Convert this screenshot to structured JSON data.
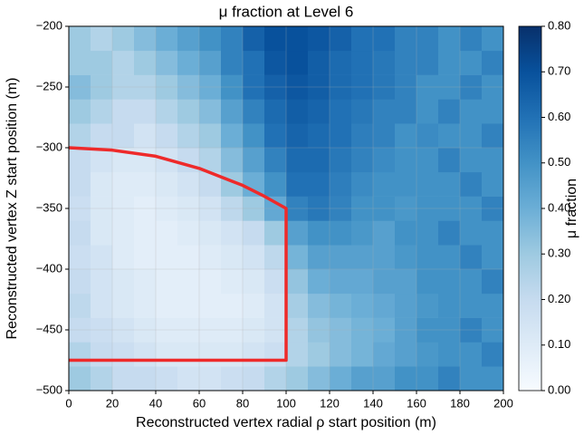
{
  "chart_data": {
    "type": "heatmap",
    "title": "μ fraction at Level 6",
    "xlabel": "Reconstructed vertex radial ρ start position (m)",
    "ylabel": "Reconstructed vertex Z start position (m)",
    "colorbar_label": "μ fraction",
    "colormap": "Blues",
    "grid": true,
    "xlim": [
      0,
      200
    ],
    "ylim": [
      -500,
      -200
    ],
    "clim": [
      0,
      0.8
    ],
    "xticks": [
      0,
      20,
      40,
      60,
      80,
      100,
      120,
      140,
      160,
      180,
      200
    ],
    "yticks": [
      {
        "value": -500,
        "label": "−500"
      },
      {
        "value": -450,
        "label": "−450"
      },
      {
        "value": -400,
        "label": "−400"
      },
      {
        "value": -350,
        "label": "−350"
      },
      {
        "value": -300,
        "label": "−300"
      },
      {
        "value": -250,
        "label": "−250"
      },
      {
        "value": -200,
        "label": "−200"
      }
    ],
    "cticks": [
      {
        "value": 0,
        "label": "0.00"
      },
      {
        "value": 0.1,
        "label": "0.10"
      },
      {
        "value": 0.2,
        "label": "0.20"
      },
      {
        "value": 0.3,
        "label": "0.30"
      },
      {
        "value": 0.4,
        "label": "0.40"
      },
      {
        "value": 0.5,
        "label": "0.50"
      },
      {
        "value": 0.6,
        "label": "0.60"
      },
      {
        "value": 0.7,
        "label": "0.70"
      },
      {
        "value": 0.8,
        "label": "0.80"
      }
    ],
    "x_bins": [
      0,
      10,
      20,
      30,
      40,
      50,
      60,
      70,
      80,
      90,
      100,
      110,
      120,
      130,
      140,
      150,
      160,
      170,
      180,
      190,
      200
    ],
    "y_bins": [
      -500,
      -480,
      -460,
      -440,
      -420,
      -400,
      -380,
      -360,
      -340,
      -320,
      -300,
      -280,
      -260,
      -240,
      -220,
      -200
    ],
    "z": [
      [
        0.3,
        0.25,
        0.2,
        0.2,
        0.18,
        0.15,
        0.15,
        0.18,
        0.2,
        0.25,
        0.3,
        0.35,
        0.4,
        0.45,
        0.45,
        0.5,
        0.5,
        0.55,
        0.5,
        0.5
      ],
      [
        0.25,
        0.2,
        0.18,
        0.15,
        0.12,
        0.12,
        0.12,
        0.12,
        0.15,
        0.18,
        0.25,
        0.3,
        0.35,
        0.38,
        0.42,
        0.45,
        0.48,
        0.5,
        0.5,
        0.55
      ],
      [
        0.2,
        0.18,
        0.15,
        0.12,
        0.1,
        0.1,
        0.1,
        0.1,
        0.12,
        0.15,
        0.25,
        0.32,
        0.35,
        0.38,
        0.4,
        0.45,
        0.5,
        0.5,
        0.55,
        0.5
      ],
      [
        0.22,
        0.15,
        0.12,
        0.1,
        0.08,
        0.08,
        0.08,
        0.08,
        0.1,
        0.15,
        0.28,
        0.35,
        0.38,
        0.4,
        0.42,
        0.45,
        0.48,
        0.5,
        0.5,
        0.5
      ],
      [
        0.2,
        0.15,
        0.12,
        0.1,
        0.08,
        0.08,
        0.08,
        0.1,
        0.12,
        0.18,
        0.32,
        0.4,
        0.42,
        0.42,
        0.45,
        0.45,
        0.5,
        0.5,
        0.5,
        0.55
      ],
      [
        0.18,
        0.15,
        0.1,
        0.08,
        0.08,
        0.08,
        0.1,
        0.12,
        0.15,
        0.22,
        0.38,
        0.45,
        0.45,
        0.45,
        0.45,
        0.48,
        0.5,
        0.5,
        0.55,
        0.5
      ],
      [
        0.2,
        0.12,
        0.1,
        0.08,
        0.08,
        0.1,
        0.12,
        0.15,
        0.2,
        0.3,
        0.45,
        0.5,
        0.5,
        0.48,
        0.45,
        0.5,
        0.5,
        0.55,
        0.5,
        0.5
      ],
      [
        0.18,
        0.12,
        0.1,
        0.08,
        0.1,
        0.12,
        0.15,
        0.22,
        0.3,
        0.42,
        0.55,
        0.58,
        0.55,
        0.5,
        0.5,
        0.48,
        0.5,
        0.5,
        0.5,
        0.55
      ],
      [
        0.2,
        0.12,
        0.1,
        0.1,
        0.12,
        0.15,
        0.2,
        0.3,
        0.4,
        0.5,
        0.6,
        0.6,
        0.56,
        0.52,
        0.5,
        0.5,
        0.5,
        0.5,
        0.55,
        0.5
      ],
      [
        0.2,
        0.15,
        0.12,
        0.12,
        0.15,
        0.2,
        0.25,
        0.35,
        0.45,
        0.55,
        0.62,
        0.62,
        0.58,
        0.55,
        0.52,
        0.5,
        0.5,
        0.55,
        0.5,
        0.5
      ],
      [
        0.25,
        0.2,
        0.2,
        0.15,
        0.2,
        0.25,
        0.3,
        0.4,
        0.5,
        0.6,
        0.64,
        0.62,
        0.6,
        0.56,
        0.55,
        0.5,
        0.52,
        0.5,
        0.5,
        0.55
      ],
      [
        0.3,
        0.25,
        0.2,
        0.2,
        0.25,
        0.3,
        0.35,
        0.45,
        0.55,
        0.62,
        0.66,
        0.64,
        0.6,
        0.58,
        0.55,
        0.55,
        0.5,
        0.55,
        0.5,
        0.5
      ],
      [
        0.35,
        0.3,
        0.25,
        0.25,
        0.3,
        0.35,
        0.4,
        0.5,
        0.6,
        0.65,
        0.68,
        0.66,
        0.62,
        0.6,
        0.58,
        0.55,
        0.5,
        0.5,
        0.55,
        0.5
      ],
      [
        0.3,
        0.3,
        0.25,
        0.3,
        0.35,
        0.4,
        0.45,
        0.55,
        0.6,
        0.68,
        0.7,
        0.66,
        0.62,
        0.6,
        0.58,
        0.55,
        0.55,
        0.5,
        0.5,
        0.55
      ],
      [
        0.3,
        0.25,
        0.3,
        0.35,
        0.4,
        0.45,
        0.5,
        0.55,
        0.65,
        0.7,
        0.7,
        0.68,
        0.65,
        0.6,
        0.6,
        0.55,
        0.55,
        0.5,
        0.55,
        0.5
      ]
    ],
    "region": {
      "color": "#ee2a2a",
      "x": [
        0,
        20,
        40,
        60,
        80,
        90,
        100,
        100,
        0
      ],
      "y": [
        -300,
        -302,
        -307,
        -317,
        -331,
        -340,
        -350,
        -475,
        -475
      ]
    }
  }
}
